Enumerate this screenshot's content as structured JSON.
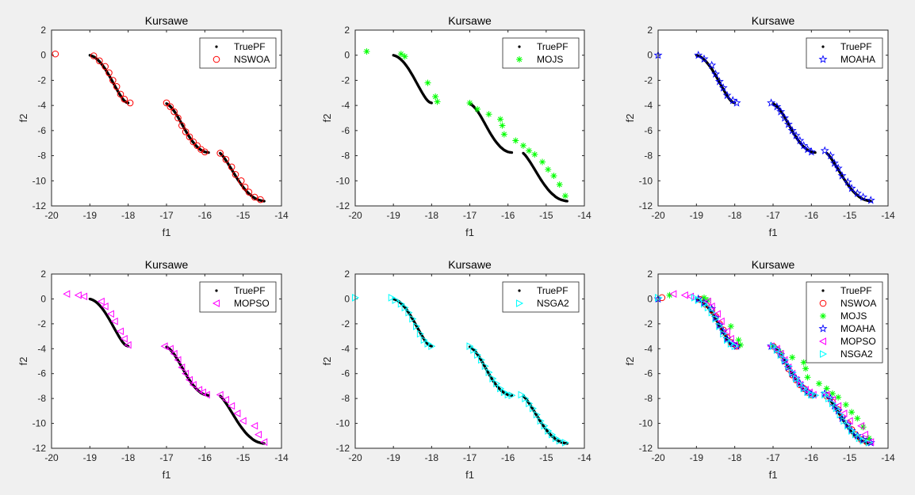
{
  "figure": {
    "background": "#f0f0f0"
  },
  "chart_data": [
    {
      "type": "scatter",
      "title": "Kursawe",
      "xlabel": "f1",
      "ylabel": "f2",
      "xlim": [
        -20,
        -14
      ],
      "ylim": [
        -12,
        2
      ],
      "xticks": [
        -20,
        -19,
        -18,
        -17,
        -16,
        -15,
        -14
      ],
      "yticks": [
        -12,
        -10,
        -8,
        -6,
        -4,
        -2,
        0,
        2
      ],
      "legend_position": "top-right",
      "series": [
        {
          "name": "TruePF",
          "marker": "dot",
          "color": "#000000",
          "set": "truepf"
        },
        {
          "name": "NSWOA",
          "marker": "circle",
          "color": "#ff0000",
          "set": "nswoa"
        }
      ]
    },
    {
      "type": "scatter",
      "title": "Kursawe",
      "xlabel": "f1",
      "ylabel": "f2",
      "xlim": [
        -20,
        -14
      ],
      "ylim": [
        -12,
        2
      ],
      "xticks": [
        -20,
        -19,
        -18,
        -17,
        -16,
        -15,
        -14
      ],
      "yticks": [
        -12,
        -10,
        -8,
        -6,
        -4,
        -2,
        0,
        2
      ],
      "legend_position": "top-right",
      "series": [
        {
          "name": "TruePF",
          "marker": "dot",
          "color": "#000000",
          "set": "truepf"
        },
        {
          "name": "MOJS",
          "marker": "asterisk",
          "color": "#00ff00",
          "set": "mojs"
        }
      ]
    },
    {
      "type": "scatter",
      "title": "Kursawe",
      "xlabel": "f1",
      "ylabel": "f2",
      "xlim": [
        -20,
        -14
      ],
      "ylim": [
        -12,
        2
      ],
      "xticks": [
        -20,
        -19,
        -18,
        -17,
        -16,
        -15,
        -14
      ],
      "yticks": [
        -12,
        -10,
        -8,
        -6,
        -4,
        -2,
        0,
        2
      ],
      "legend_position": "top-right",
      "series": [
        {
          "name": "TruePF",
          "marker": "dot",
          "color": "#000000",
          "set": "truepf"
        },
        {
          "name": "MOAHA",
          "marker": "star",
          "color": "#0000ff",
          "set": "moaha"
        }
      ]
    },
    {
      "type": "scatter",
      "title": "Kursawe",
      "xlabel": "f1",
      "ylabel": "f2",
      "xlim": [
        -20,
        -14
      ],
      "ylim": [
        -12,
        2
      ],
      "xticks": [
        -20,
        -19,
        -18,
        -17,
        -16,
        -15,
        -14
      ],
      "yticks": [
        -12,
        -10,
        -8,
        -6,
        -4,
        -2,
        0,
        2
      ],
      "legend_position": "top-right",
      "series": [
        {
          "name": "TruePF",
          "marker": "dot",
          "color": "#000000",
          "set": "truepf"
        },
        {
          "name": "MOPSO",
          "marker": "triangle-left",
          "color": "#ff00ff",
          "set": "mopso"
        }
      ]
    },
    {
      "type": "scatter",
      "title": "Kursawe",
      "xlabel": "f1",
      "ylabel": "f2",
      "xlim": [
        -20,
        -14
      ],
      "ylim": [
        -12,
        2
      ],
      "xticks": [
        -20,
        -19,
        -18,
        -17,
        -16,
        -15,
        -14
      ],
      "yticks": [
        -12,
        -10,
        -8,
        -6,
        -4,
        -2,
        0,
        2
      ],
      "legend_position": "top-right",
      "series": [
        {
          "name": "TruePF",
          "marker": "dot",
          "color": "#000000",
          "set": "truepf"
        },
        {
          "name": "NSGA2",
          "marker": "triangle-right",
          "color": "#00ffff",
          "set": "nsga2"
        }
      ]
    },
    {
      "type": "scatter",
      "title": "Kursawe",
      "xlabel": "f1",
      "ylabel": "f2",
      "xlim": [
        -20,
        -14
      ],
      "ylim": [
        -12,
        2
      ],
      "xticks": [
        -20,
        -19,
        -18,
        -17,
        -16,
        -15,
        -14
      ],
      "yticks": [
        -12,
        -10,
        -8,
        -6,
        -4,
        -2,
        0,
        2
      ],
      "legend_position": "top-right",
      "series": [
        {
          "name": "TruePF",
          "marker": "dot",
          "color": "#000000",
          "set": "truepf"
        },
        {
          "name": "NSWOA",
          "marker": "circle",
          "color": "#ff0000",
          "set": "nswoa"
        },
        {
          "name": "MOJS",
          "marker": "asterisk",
          "color": "#00ff00",
          "set": "mojs"
        },
        {
          "name": "MOAHA",
          "marker": "star",
          "color": "#0000ff",
          "set": "moaha"
        },
        {
          "name": "MOPSO",
          "marker": "triangle-left",
          "color": "#ff00ff",
          "set": "mopso"
        },
        {
          "name": "NSGA2",
          "marker": "triangle-right",
          "color": "#00ffff",
          "set": "nsga2"
        }
      ]
    }
  ],
  "point_sets": {
    "truepf": [
      [
        -19.0,
        0.0
      ],
      [
        -18.95,
        -0.05
      ],
      [
        -18.9,
        -0.12
      ],
      [
        -18.85,
        -0.22
      ],
      [
        -18.8,
        -0.35
      ],
      [
        -18.75,
        -0.5
      ],
      [
        -18.7,
        -0.68
      ],
      [
        -18.65,
        -0.88
      ],
      [
        -18.6,
        -1.1
      ],
      [
        -18.55,
        -1.35
      ],
      [
        -18.5,
        -1.6
      ],
      [
        -18.45,
        -1.87
      ],
      [
        -18.4,
        -2.15
      ],
      [
        -18.35,
        -2.43
      ],
      [
        -18.3,
        -2.7
      ],
      [
        -18.25,
        -2.97
      ],
      [
        -18.2,
        -3.22
      ],
      [
        -18.15,
        -3.45
      ],
      [
        -18.1,
        -3.63
      ],
      [
        -18.05,
        -3.75
      ],
      [
        -18.0,
        -3.8
      ],
      [
        -17.0,
        -3.85
      ],
      [
        -16.95,
        -3.95
      ],
      [
        -16.9,
        -4.08
      ],
      [
        -16.85,
        -4.25
      ],
      [
        -16.8,
        -4.45
      ],
      [
        -16.75,
        -4.68
      ],
      [
        -16.7,
        -4.93
      ],
      [
        -16.65,
        -5.2
      ],
      [
        -16.6,
        -5.47
      ],
      [
        -16.55,
        -5.75
      ],
      [
        -16.5,
        -6.02
      ],
      [
        -16.45,
        -6.28
      ],
      [
        -16.4,
        -6.52
      ],
      [
        -16.35,
        -6.75
      ],
      [
        -16.3,
        -6.95
      ],
      [
        -16.25,
        -7.13
      ],
      [
        -16.2,
        -7.3
      ],
      [
        -16.15,
        -7.43
      ],
      [
        -16.1,
        -7.55
      ],
      [
        -16.05,
        -7.63
      ],
      [
        -16.0,
        -7.7
      ],
      [
        -15.95,
        -7.73
      ],
      [
        -15.9,
        -7.75
      ],
      [
        -15.6,
        -7.8
      ],
      [
        -15.55,
        -7.95
      ],
      [
        -15.5,
        -8.15
      ],
      [
        -15.45,
        -8.37
      ],
      [
        -15.4,
        -8.6
      ],
      [
        -15.35,
        -8.85
      ],
      [
        -15.3,
        -9.1
      ],
      [
        -15.25,
        -9.35
      ],
      [
        -15.2,
        -9.6
      ],
      [
        -15.15,
        -9.85
      ],
      [
        -15.1,
        -10.08
      ],
      [
        -15.05,
        -10.3
      ],
      [
        -15.0,
        -10.5
      ],
      [
        -14.95,
        -10.7
      ],
      [
        -14.9,
        -10.87
      ],
      [
        -14.85,
        -11.02
      ],
      [
        -14.8,
        -11.15
      ],
      [
        -14.75,
        -11.28
      ],
      [
        -14.7,
        -11.38
      ],
      [
        -14.65,
        -11.46
      ],
      [
        -14.6,
        -11.52
      ],
      [
        -14.55,
        -11.56
      ],
      [
        -14.5,
        -11.6
      ],
      [
        -14.45,
        -11.62
      ]
    ],
    "nswoa": [
      [
        -19.9,
        0.1
      ],
      [
        -18.9,
        -0.05
      ],
      [
        -18.75,
        -0.45
      ],
      [
        -18.6,
        -0.9
      ],
      [
        -18.5,
        -1.4
      ],
      [
        -18.4,
        -2.0
      ],
      [
        -18.3,
        -2.5
      ],
      [
        -18.2,
        -3.1
      ],
      [
        -18.1,
        -3.5
      ],
      [
        -17.95,
        -3.8
      ],
      [
        -17.0,
        -3.8
      ],
      [
        -16.9,
        -4.1
      ],
      [
        -16.8,
        -4.5
      ],
      [
        -16.7,
        -5.0
      ],
      [
        -16.6,
        -5.6
      ],
      [
        -16.5,
        -6.1
      ],
      [
        -16.4,
        -6.5
      ],
      [
        -16.3,
        -6.9
      ],
      [
        -16.2,
        -7.2
      ],
      [
        -16.1,
        -7.5
      ],
      [
        -16.0,
        -7.7
      ],
      [
        -15.6,
        -7.8
      ],
      [
        -15.45,
        -8.3
      ],
      [
        -15.3,
        -8.9
      ],
      [
        -15.2,
        -9.5
      ],
      [
        -15.05,
        -10.0
      ],
      [
        -14.95,
        -10.5
      ],
      [
        -14.85,
        -10.9
      ],
      [
        -14.7,
        -11.3
      ],
      [
        -14.55,
        -11.5
      ]
    ],
    "mojs": [
      [
        -19.7,
        0.3
      ],
      [
        -18.8,
        0.1
      ],
      [
        -18.7,
        -0.1
      ],
      [
        -18.1,
        -2.2
      ],
      [
        -17.9,
        -3.3
      ],
      [
        -17.85,
        -3.7
      ],
      [
        -17.0,
        -3.8
      ],
      [
        -16.8,
        -4.3
      ],
      [
        -16.5,
        -4.7
      ],
      [
        -16.2,
        -5.1
      ],
      [
        -16.15,
        -5.6
      ],
      [
        -16.1,
        -6.3
      ],
      [
        -15.8,
        -6.8
      ],
      [
        -15.6,
        -7.2
      ],
      [
        -15.45,
        -7.6
      ],
      [
        -15.3,
        -7.9
      ],
      [
        -15.1,
        -8.5
      ],
      [
        -14.95,
        -9.1
      ],
      [
        -14.8,
        -9.6
      ],
      [
        -14.65,
        -10.3
      ],
      [
        -14.5,
        -11.2
      ]
    ],
    "moaha": [
      [
        -20.0,
        0.0
      ],
      [
        -18.95,
        0.0
      ],
      [
        -18.8,
        -0.3
      ],
      [
        -18.6,
        -0.8
      ],
      [
        -18.5,
        -1.5
      ],
      [
        -18.4,
        -2.1
      ],
      [
        -18.3,
        -2.6
      ],
      [
        -18.2,
        -3.2
      ],
      [
        -18.05,
        -3.6
      ],
      [
        -17.95,
        -3.8
      ],
      [
        -17.05,
        -3.8
      ],
      [
        -16.9,
        -4.1
      ],
      [
        -16.8,
        -4.5
      ],
      [
        -16.7,
        -5.0
      ],
      [
        -16.6,
        -5.5
      ],
      [
        -16.5,
        -6.0
      ],
      [
        -16.4,
        -6.4
      ],
      [
        -16.3,
        -6.8
      ],
      [
        -16.2,
        -7.2
      ],
      [
        -16.1,
        -7.5
      ],
      [
        -16.0,
        -7.7
      ],
      [
        -15.65,
        -7.6
      ],
      [
        -15.5,
        -8.0
      ],
      [
        -15.4,
        -8.6
      ],
      [
        -15.3,
        -9.0
      ],
      [
        -15.2,
        -9.6
      ],
      [
        -15.05,
        -10.1
      ],
      [
        -14.95,
        -10.6
      ],
      [
        -14.8,
        -11.0
      ],
      [
        -14.65,
        -11.3
      ],
      [
        -14.45,
        -11.55
      ]
    ],
    "mopso": [
      [
        -19.6,
        0.4
      ],
      [
        -19.3,
        0.3
      ],
      [
        -19.15,
        0.2
      ],
      [
        -18.7,
        -0.2
      ],
      [
        -18.6,
        -0.6
      ],
      [
        -18.45,
        -1.2
      ],
      [
        -18.35,
        -1.8
      ],
      [
        -18.2,
        -2.6
      ],
      [
        -18.1,
        -3.2
      ],
      [
        -18.0,
        -3.7
      ],
      [
        -17.05,
        -3.8
      ],
      [
        -16.9,
        -4.0
      ],
      [
        -16.8,
        -4.4
      ],
      [
        -16.7,
        -4.9
      ],
      [
        -16.6,
        -5.5
      ],
      [
        -16.5,
        -6.0
      ],
      [
        -16.4,
        -6.5
      ],
      [
        -16.3,
        -6.9
      ],
      [
        -16.15,
        -7.3
      ],
      [
        -16.05,
        -7.5
      ],
      [
        -15.95,
        -7.7
      ],
      [
        -15.6,
        -7.7
      ],
      [
        -15.45,
        -8.1
      ],
      [
        -15.3,
        -8.6
      ],
      [
        -15.15,
        -9.2
      ],
      [
        -15.0,
        -9.8
      ],
      [
        -14.7,
        -10.2
      ],
      [
        -14.6,
        -10.9
      ],
      [
        -14.45,
        -11.5
      ]
    ],
    "nsga2": [
      [
        -20.0,
        0.1
      ],
      [
        -19.05,
        0.1
      ],
      [
        -18.95,
        -0.1
      ],
      [
        -18.8,
        -0.4
      ],
      [
        -18.7,
        -0.7
      ],
      [
        -18.6,
        -1.1
      ],
      [
        -18.5,
        -1.6
      ],
      [
        -18.4,
        -2.2
      ],
      [
        -18.3,
        -2.8
      ],
      [
        -18.2,
        -3.3
      ],
      [
        -18.1,
        -3.6
      ],
      [
        -18.0,
        -3.8
      ],
      [
        -17.0,
        -3.8
      ],
      [
        -16.9,
        -4.1
      ],
      [
        -16.8,
        -4.5
      ],
      [
        -16.7,
        -4.9
      ],
      [
        -16.6,
        -5.4
      ],
      [
        -16.5,
        -5.9
      ],
      [
        -16.4,
        -6.4
      ],
      [
        -16.3,
        -6.8
      ],
      [
        -16.2,
        -7.2
      ],
      [
        -16.1,
        -7.5
      ],
      [
        -16.0,
        -7.7
      ],
      [
        -15.9,
        -7.75
      ],
      [
        -15.65,
        -7.7
      ],
      [
        -15.55,
        -8.0
      ],
      [
        -15.45,
        -8.4
      ],
      [
        -15.35,
        -8.8
      ],
      [
        -15.25,
        -9.3
      ],
      [
        -15.15,
        -9.8
      ],
      [
        -15.05,
        -10.2
      ],
      [
        -14.95,
        -10.6
      ],
      [
        -14.85,
        -10.9
      ],
      [
        -14.75,
        -11.2
      ],
      [
        -14.65,
        -11.4
      ],
      [
        -14.5,
        -11.55
      ]
    ]
  }
}
